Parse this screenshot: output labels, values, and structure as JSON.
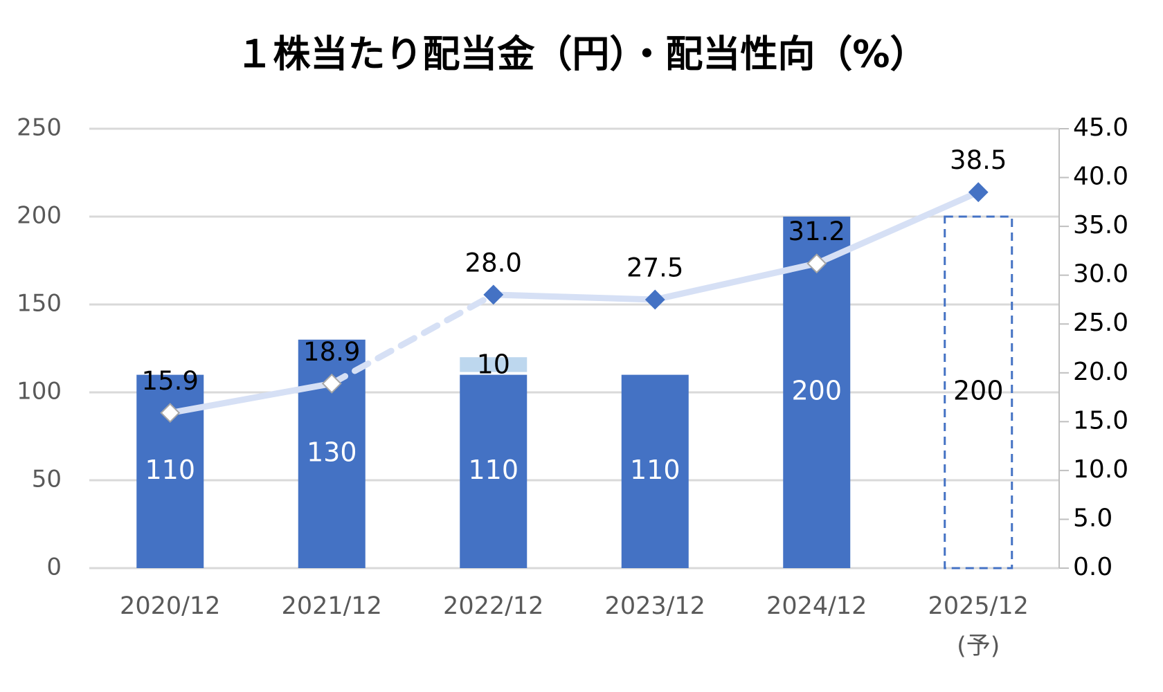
{
  "chart_data": {
    "type": "bar_line",
    "title": "１株当たり配当金（円）・配当性向（%）",
    "categories": [
      "2020/12",
      "2021/12",
      "2022/12",
      "2023/12",
      "2024/12",
      "2025/12\n(予)"
    ],
    "series": [
      {
        "type": "bar",
        "color": "#4472c4",
        "values": [
          110,
          130,
          110,
          110,
          200,
          200
        ],
        "bar_style": [
          "solid",
          "solid",
          "solid",
          "solid",
          "solid",
          "dashed"
        ]
      },
      {
        "type": "bar",
        "color": "#bdd7ee",
        "values": [
          null,
          null,
          10,
          null,
          null,
          null
        ]
      },
      {
        "type": "line",
        "axis": "y2",
        "color": "#d6e0f5",
        "marker_color": "#4472c4",
        "values": [
          15.9,
          18.9,
          28.0,
          27.5,
          31.2,
          38.5
        ],
        "value_labels": [
          "15.9",
          "18.9",
          "28.0",
          "27.5",
          "31.2",
          "38.5"
        ],
        "segment_style": [
          "solid",
          "dashed",
          "solid",
          "solid",
          "solid"
        ],
        "marker_style": [
          "hollow",
          "hollow",
          "filled",
          "filled",
          "hollow",
          "filled"
        ]
      }
    ],
    "ylim": [
      0,
      250
    ],
    "yticks": [
      0,
      50,
      100,
      150,
      200,
      250
    ],
    "y2lim": [
      0,
      45
    ],
    "y2ticks": [
      {
        "value": 0,
        "label": "0.0"
      },
      {
        "value": 5,
        "label": "5.0"
      },
      {
        "value": 10,
        "label": "10.0"
      },
      {
        "value": 15,
        "label": "15.0"
      },
      {
        "value": 20,
        "label": "20.0"
      },
      {
        "value": 25,
        "label": "25.0"
      },
      {
        "value": 30,
        "label": "30.0"
      },
      {
        "value": 35,
        "label": "35.0"
      },
      {
        "value": 40,
        "label": "40.0"
      },
      {
        "value": 45,
        "label": "45.0"
      }
    ],
    "grid": true
  }
}
